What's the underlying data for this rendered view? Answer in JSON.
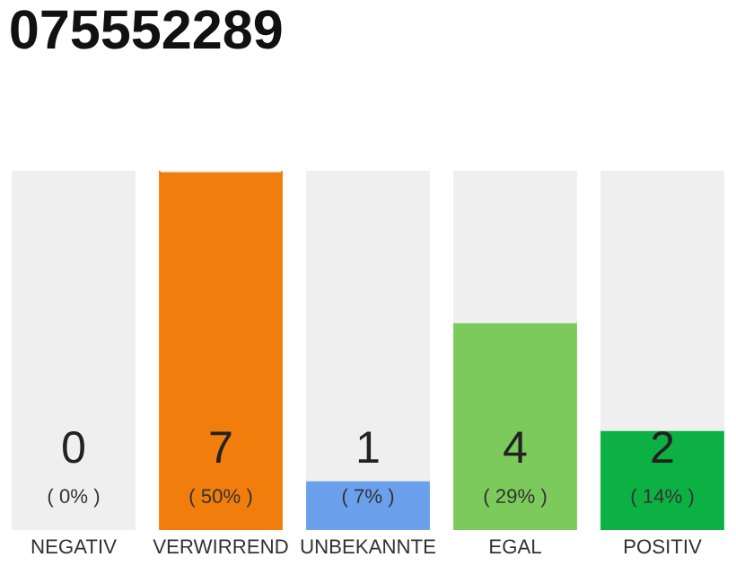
{
  "chart_data": {
    "type": "bar",
    "title": "075552289",
    "stacked": true,
    "categories": [
      "NEGATIV",
      "VERWIRREND",
      "UNBEKANNTE",
      "EGAL",
      "POSITIV"
    ],
    "series": [
      {
        "colors": [
          "#e0284a",
          "#f07d0c",
          "#6aa0ec",
          "#7dca5c",
          "#0db143"
        ],
        "values": [
          0,
          50,
          7,
          29,
          14
        ],
        "value_labels": [
          "( 0% )",
          "( 50% )",
          "( 7% )",
          "( 29% )",
          "( 14% )"
        ]
      },
      {
        "color": "#efefef",
        "values": [
          50,
          0,
          43,
          21,
          36
        ]
      }
    ],
    "annotations": [
      "0",
      "7",
      "1",
      "4",
      "2"
    ],
    "tick_labels": "x",
    "grid": false,
    "legend": false
  }
}
